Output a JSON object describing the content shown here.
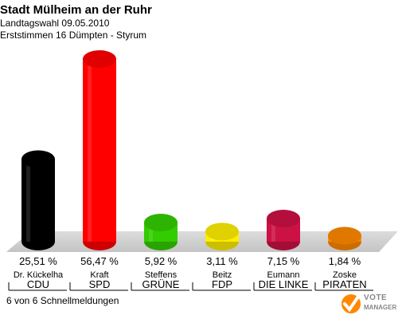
{
  "header": {
    "title": "Stadt Mülheim an der Ruhr",
    "subtitle": "Landtagswahl 09.05.2010",
    "subtitle2": "Erststimmen 16 Dümpten - Styrum"
  },
  "footer": {
    "left_text": "6 von 6 Schnellmeldungen",
    "logo_line1": "VOTE",
    "logo_line2": "MANAGER"
  },
  "chart_data": {
    "type": "bar",
    "title": "Stadt Mülheim an der Ruhr",
    "categories": [
      "CDU",
      "SPD",
      "GRÜNE",
      "FDP",
      "DIE LINKE",
      "PIRATEN"
    ],
    "candidates": [
      "Dr. Kückelha",
      "Kraft",
      "Steffens",
      "Beitz",
      "Eumann",
      "Zoske"
    ],
    "values": [
      25.51,
      56.47,
      5.92,
      3.11,
      7.15,
      1.84
    ],
    "value_labels": [
      "25,51 %",
      "56,47 %",
      "5,92 %",
      "3,11 %",
      "7,15 %",
      "1,84 %"
    ],
    "colors": [
      "#000000",
      "#ff0000",
      "#33cc00",
      "#ffee00",
      "#cc1144",
      "#ff8800"
    ],
    "xlabel": "",
    "ylabel": "",
    "ylim": [
      0,
      56.47
    ]
  }
}
